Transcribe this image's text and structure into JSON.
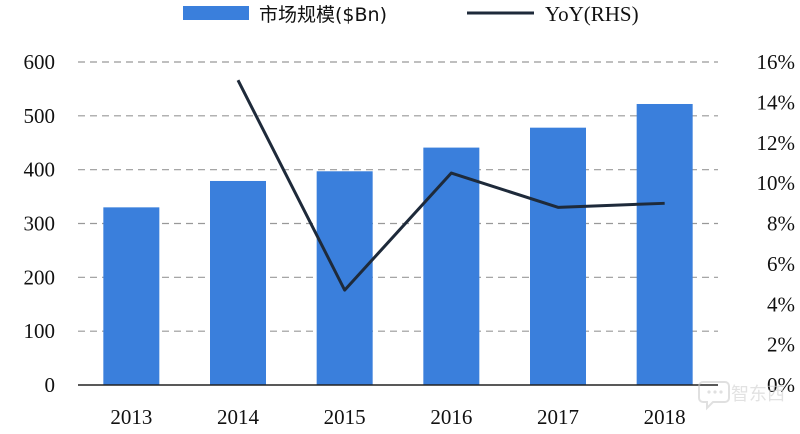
{
  "chart_data": {
    "type": "bar",
    "categories": [
      "2013",
      "2014",
      "2015",
      "2016",
      "2017",
      "2018"
    ],
    "series": [
      {
        "name": "市场规模($Bn)",
        "type": "bar",
        "axis": "left",
        "color": "#3a7fdc",
        "values": [
          330,
          379,
          397,
          441,
          478,
          522
        ]
      },
      {
        "name": "YoY(RHS)",
        "type": "line",
        "axis": "right",
        "color": "#1e2a3a",
        "values": [
          null,
          15.1,
          4.7,
          10.5,
          8.8,
          9.0
        ]
      }
    ],
    "ylim": [
      0,
      600
    ],
    "y_ticks": [
      "0",
      "100",
      "200",
      "300",
      "400",
      "500",
      "600"
    ],
    "y2lim": [
      0,
      16
    ],
    "y2_ticks": [
      "0%",
      "2%",
      "4%",
      "6%",
      "8%",
      "10%",
      "12%",
      "14%",
      "16%"
    ],
    "grid": "dashed horizontal",
    "legend_position": "top"
  },
  "watermark": {
    "text": "智东西",
    "logo": "speech-bubble-logo"
  }
}
